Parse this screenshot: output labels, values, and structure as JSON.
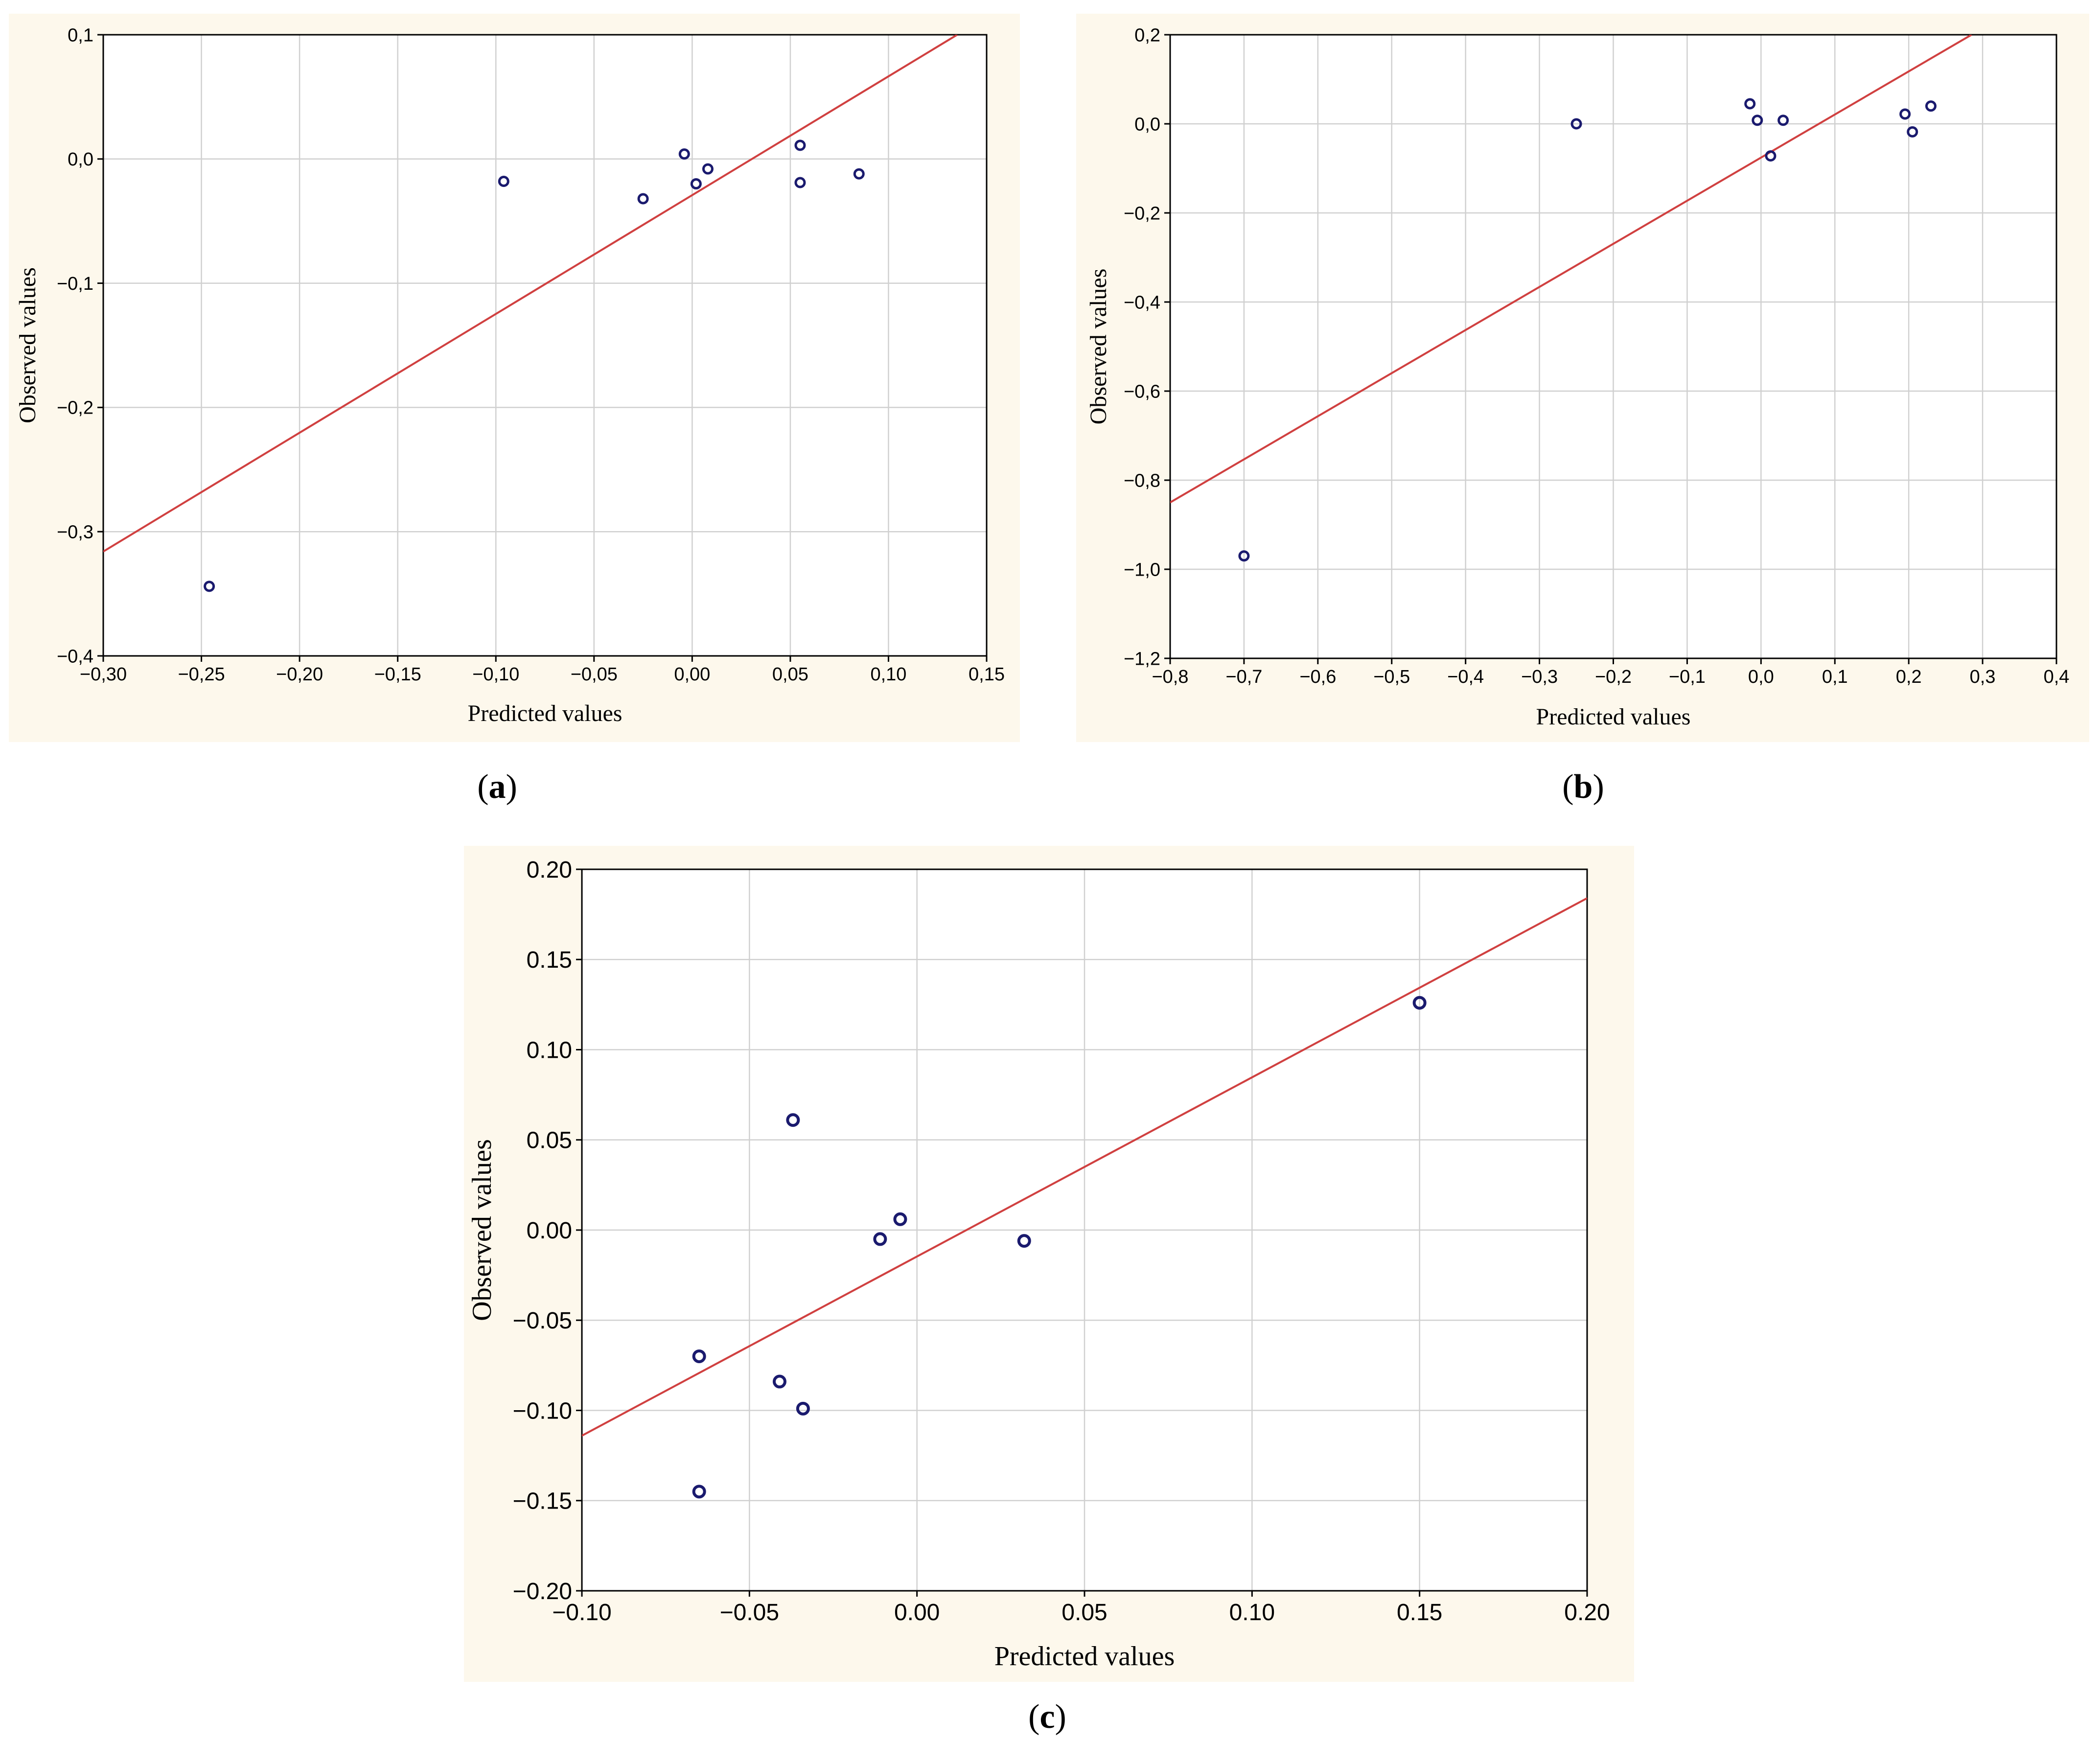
{
  "chart_data": [
    {
      "type": "scatter",
      "id": "a",
      "caption_letter": "a",
      "xlabel": "Predicted values",
      "ylabel": "Observed values",
      "xlim": [
        -0.3,
        0.15
      ],
      "ylim": [
        -0.4,
        0.1
      ],
      "xticks": [
        -0.3,
        -0.25,
        -0.2,
        -0.15,
        -0.1,
        -0.05,
        0.0,
        0.05,
        0.1,
        0.15
      ],
      "xtick_labels": [
        "−0,30",
        "−0,25",
        "−0,20",
        "−0,15",
        "−0,10",
        "−0,05",
        "0,00",
        "0,05",
        "0,10",
        "0,15"
      ],
      "yticks": [
        -0.4,
        -0.3,
        -0.2,
        -0.1,
        0.0,
        0.1
      ],
      "ytick_labels": [
        "−0,4",
        "−0,3",
        "−0,2",
        "−0,1",
        "0,0",
        "0,1"
      ],
      "grid": true,
      "points": [
        {
          "x": -0.246,
          "y": -0.344
        },
        {
          "x": -0.096,
          "y": -0.018
        },
        {
          "x": -0.025,
          "y": -0.032
        },
        {
          "x": -0.004,
          "y": 0.004
        },
        {
          "x": 0.002,
          "y": -0.02
        },
        {
          "x": 0.008,
          "y": -0.008
        },
        {
          "x": 0.055,
          "y": 0.011
        },
        {
          "x": 0.055,
          "y": -0.019
        },
        {
          "x": 0.085,
          "y": -0.012
        }
      ],
      "fit_line": {
        "x": [
          -0.3,
          0.135
        ],
        "y": [
          -0.316,
          0.1
        ]
      },
      "colors": {
        "fit": "#d04040",
        "points": "#1a1a6e",
        "panel": "#fdf8ec"
      }
    },
    {
      "type": "scatter",
      "id": "b",
      "caption_letter": "b",
      "xlabel": "Predicted values",
      "ylabel": "Observed values",
      "xlim": [
        -0.8,
        0.4
      ],
      "ylim": [
        -1.2,
        0.2
      ],
      "xticks": [
        -0.8,
        -0.7,
        -0.6,
        -0.5,
        -0.4,
        -0.3,
        -0.2,
        -0.1,
        0.0,
        0.1,
        0.2,
        0.3,
        0.4
      ],
      "xtick_labels": [
        "−0,8",
        "−0,7",
        "−0,6",
        "−0,5",
        "−0,4",
        "−0,3",
        "−0,2",
        "−0,1",
        "0,0",
        "0,1",
        "0,2",
        "0,3",
        "0,4"
      ],
      "yticks": [
        -1.2,
        -1.0,
        -0.8,
        -0.6,
        -0.4,
        -0.2,
        0.0,
        0.2
      ],
      "ytick_labels": [
        "−1,2",
        "−1,0",
        "−0,8",
        "−0,6",
        "−0,4",
        "−0,2",
        "0,0",
        "0,2"
      ],
      "grid": true,
      "points": [
        {
          "x": -0.7,
          "y": -0.97
        },
        {
          "x": -0.25,
          "y": 0.0
        },
        {
          "x": -0.015,
          "y": 0.045
        },
        {
          "x": -0.005,
          "y": 0.008
        },
        {
          "x": 0.013,
          "y": -0.072
        },
        {
          "x": 0.03,
          "y": 0.008
        },
        {
          "x": 0.195,
          "y": 0.022
        },
        {
          "x": 0.205,
          "y": -0.018
        },
        {
          "x": 0.23,
          "y": 0.04
        }
      ],
      "fit_line": {
        "x": [
          -0.8,
          0.285
        ],
        "y": [
          -0.85,
          0.2
        ]
      },
      "colors": {
        "fit": "#d04040",
        "points": "#1a1a6e",
        "panel": "#fdf8ec"
      }
    },
    {
      "type": "scatter",
      "id": "c",
      "caption_letter": "c",
      "xlabel": "Predicted values",
      "ylabel": "Observed values",
      "xlim": [
        -0.1,
        0.2
      ],
      "ylim": [
        -0.2,
        0.2
      ],
      "xticks": [
        -0.1,
        -0.05,
        0.0,
        0.05,
        0.1,
        0.15,
        0.2
      ],
      "xtick_labels": [
        "−0.10",
        "−0.05",
        "0.00",
        "0.05",
        "0.10",
        "0.15",
        "0.20"
      ],
      "yticks": [
        -0.2,
        -0.15,
        -0.1,
        -0.05,
        0.0,
        0.05,
        0.1,
        0.15,
        0.2
      ],
      "ytick_labels": [
        "−0.20",
        "−0.15",
        "−0.10",
        "−0.05",
        "0.00",
        "0.05",
        "0.10",
        "0.15",
        "0.20"
      ],
      "grid": true,
      "points": [
        {
          "x": -0.065,
          "y": -0.07
        },
        {
          "x": -0.065,
          "y": -0.145
        },
        {
          "x": -0.041,
          "y": -0.084
        },
        {
          "x": -0.037,
          "y": 0.061
        },
        {
          "x": -0.034,
          "y": -0.099
        },
        {
          "x": -0.011,
          "y": -0.005
        },
        {
          "x": -0.005,
          "y": 0.006
        },
        {
          "x": 0.032,
          "y": -0.006
        },
        {
          "x": 0.15,
          "y": 0.126
        }
      ],
      "fit_line": {
        "x": [
          -0.1,
          0.2
        ],
        "y": [
          -0.114,
          0.184
        ]
      },
      "colors": {
        "fit": "#d04040",
        "points": "#1a1a6e",
        "panel": "#fdf8ec"
      }
    }
  ]
}
